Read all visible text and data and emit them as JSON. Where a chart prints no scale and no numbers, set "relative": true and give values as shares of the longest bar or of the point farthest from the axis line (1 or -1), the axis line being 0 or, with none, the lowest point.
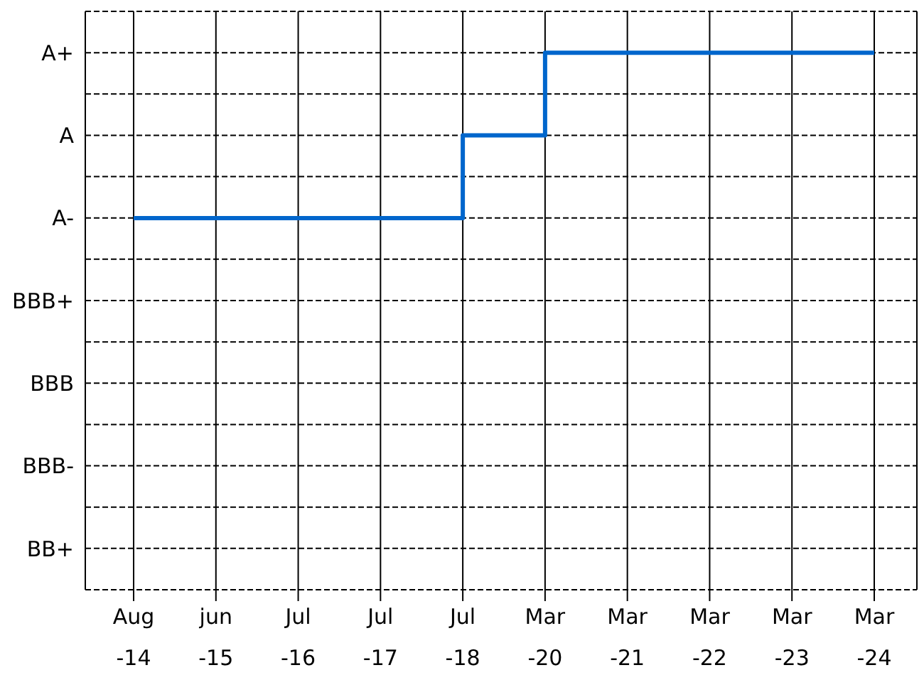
{
  "chart_data": {
    "type": "step",
    "relative": true,
    "categories": [
      "Aug -14",
      "jun -15",
      "Jul -16",
      "Jul -17",
      "Jul -18",
      "Mar -20",
      "Mar -21",
      "Mar -22",
      "Mar -23",
      "Mar -24"
    ],
    "y_categories": [
      "A+",
      "A",
      "A-",
      "BBB+",
      "BBB",
      "BBB-",
      "BB+"
    ],
    "series": [
      {
        "color": "#0066cc",
        "values": [
          0.692,
          0.692,
          0.692,
          0.692,
          0.846,
          1,
          1,
          1,
          1,
          1
        ]
      }
    ],
    "grid": true,
    "marker": "none",
    "line_style": "solid"
  }
}
